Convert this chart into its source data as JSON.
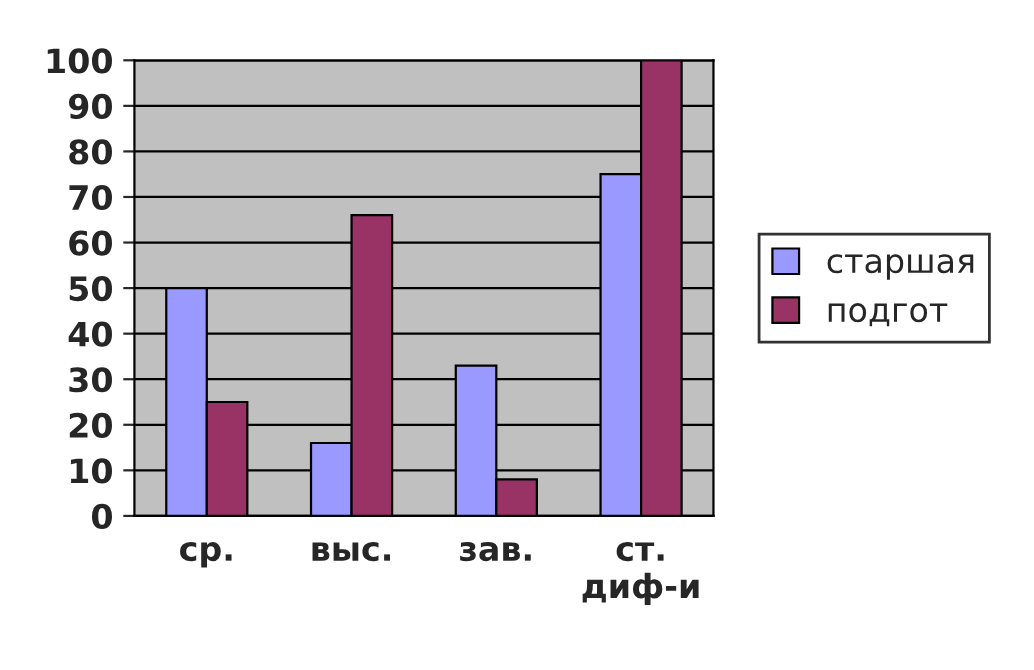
{
  "chart_data": {
    "type": "bar",
    "categories": [
      "ср.",
      "выс.",
      "зав.",
      "ст.\nдиф-и"
    ],
    "series": [
      {
        "name": "старшая",
        "color": "#9999ff",
        "values": [
          50,
          16,
          33,
          75
        ]
      },
      {
        "name": "подгот",
        "color": "#993366",
        "values": [
          25,
          66,
          8,
          100
        ]
      }
    ],
    "ylim": [
      0,
      100
    ],
    "yticks": [
      0,
      10,
      20,
      30,
      40,
      50,
      60,
      70,
      80,
      90,
      100
    ],
    "grid": "y",
    "legend": "right"
  }
}
